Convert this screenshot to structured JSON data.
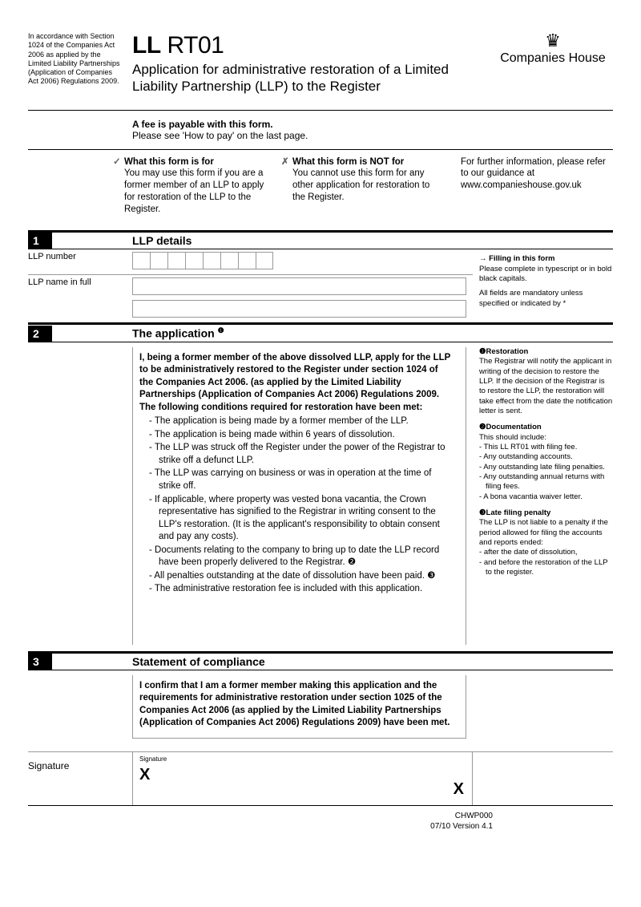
{
  "header": {
    "legal_note": "In accordance with Section 1024 of the Companies Act 2006 as applied by the Limited Liability Partnerships (Application of Companies Act 2006) Regulations 2009.",
    "form_code_bold": "LL",
    "form_code_rest": " RT01",
    "title": "Application for administrative restoration of a Limited Liability Partnership (LLP) to the Register",
    "org": "Companies House"
  },
  "fee": {
    "heading": "A fee is payable with this form.",
    "sub": "Please see 'How to pay' on the last page."
  },
  "info": {
    "for_h": "What this form is for",
    "for_t": "You may use this form if you are a former member of an LLP to apply for restoration of the LLP to the Register.",
    "not_h": "What this form is NOT for",
    "not_t": "You cannot use this form for any other application for restoration to the Register.",
    "more": "For further information, please refer to our guidance at www.companieshouse.gov.uk"
  },
  "s1": {
    "num": "1",
    "title": "LLP details",
    "llp_number_label": "LLP number",
    "llp_name_label": "LLP name in full",
    "side_h": "Filling in this form",
    "side_1": "Please complete in typescript or in bold black capitals.",
    "side_2": "All fields are mandatory unless specified or indicated by *"
  },
  "s2": {
    "num": "2",
    "title": "The application",
    "intro": "I, being a former member of the above dissolved LLP, apply for the LLP to be administratively restored to the Register under section 1024 of the Companies Act 2006. (as applied by the Limited Liability Partnerships (Application of Companies Act 2006) Regulations 2009. The following conditions required for restoration have been met:",
    "items": [
      "The application is being made by a former member of the LLP.",
      "The application is being made within 6 years of dissolution.",
      "The LLP was struck off the Register under the power of the Registrar to strike off a defunct LLP.",
      "The LLP was carrying on business or was in operation at the time of strike off.",
      "If applicable, where property was vested bona vacantia, the Crown representative has signified to the Registrar in writing consent to the LLP's restoration. (It is the applicant's responsibility to obtain consent and pay any costs).",
      "Documents relating to the company to bring up to date the LLP record have been properly delivered to the Registrar. ❷",
      "All penalties outstanding at the date of dissolution have been paid. ❸",
      "The administrative restoration fee is included with this application."
    ],
    "side_r_h": "Restoration",
    "side_r_t": "The Registrar will notify the applicant in writing of the decision to restore the LLP. If the decision of the Registrar is to restore the LLP, the restoration will take effect from the date the notification letter is sent.",
    "side_d_h": "Documentation",
    "side_d_t": "This should include:",
    "side_d_items": [
      "This LL RT01 with filing fee.",
      "Any outstanding accounts.",
      "Any outstanding late filing penalties.",
      "Any outstanding annual returns with filing fees.",
      "A bona vacantia waiver letter."
    ],
    "side_l_h": "Late filing penalty",
    "side_l_t": "The LLP is not liable to a penalty if the period allowed for filing the accounts and reports ended:",
    "side_l_items": [
      "after the date of dissolution,",
      "and before the restoration of the LLP to the register."
    ]
  },
  "s3": {
    "num": "3",
    "title": "Statement of compliance",
    "text": "I confirm that I am a former member making this application and the requirements for administrative restoration under section 1025 of the Companies Act 2006 (as applied by the Limited Liability Partnerships (Application of Companies Act 2006) Regulations 2009) have been met.",
    "sig_label": "Signature",
    "sig_small": "Signature"
  },
  "footer": {
    "code": "CHWP000",
    "ver": "07/10 Version 4.1"
  }
}
